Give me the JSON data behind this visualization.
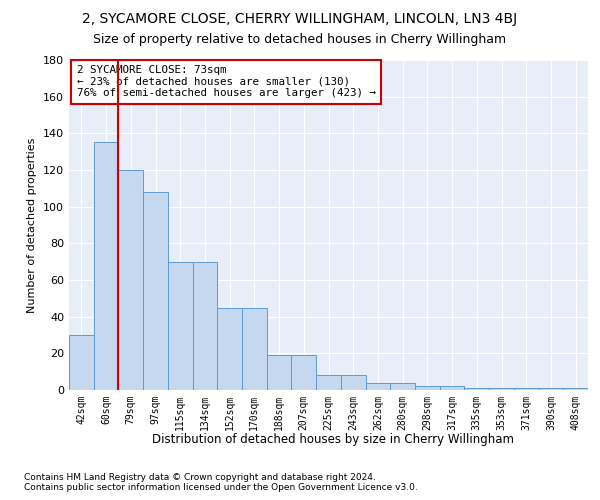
{
  "title": "2, SYCAMORE CLOSE, CHERRY WILLINGHAM, LINCOLN, LN3 4BJ",
  "subtitle": "Size of property relative to detached houses in Cherry Willingham",
  "xlabel": "Distribution of detached houses by size in Cherry Willingham",
  "ylabel": "Number of detached properties",
  "categories": [
    "42sqm",
    "60sqm",
    "79sqm",
    "97sqm",
    "115sqm",
    "134sqm",
    "152sqm",
    "170sqm",
    "188sqm",
    "207sqm",
    "225sqm",
    "243sqm",
    "262sqm",
    "280sqm",
    "298sqm",
    "317sqm",
    "335sqm",
    "353sqm",
    "371sqm",
    "390sqm",
    "408sqm"
  ],
  "values": [
    30,
    135,
    120,
    108,
    70,
    70,
    45,
    45,
    19,
    19,
    8,
    8,
    4,
    4,
    2,
    2,
    1,
    1,
    1,
    1,
    1
  ],
  "bar_color": "#c5d8f0",
  "bar_edge_color": "#5b9bd5",
  "vline_color": "#cc0000",
  "annotation_text": "2 SYCAMORE CLOSE: 73sqm\n← 23% of detached houses are smaller (130)\n76% of semi-detached houses are larger (423) →",
  "annotation_box_color": "white",
  "annotation_box_edge_color": "#cc0000",
  "ylim": [
    0,
    180
  ],
  "yticks": [
    0,
    20,
    40,
    60,
    80,
    100,
    120,
    140,
    160,
    180
  ],
  "footnote": "Contains HM Land Registry data © Crown copyright and database right 2024.\nContains public sector information licensed under the Open Government Licence v3.0.",
  "bg_color": "#e8eef8",
  "grid_color": "#ffffff",
  "title_fontsize": 10,
  "subtitle_fontsize": 9,
  "xlabel_fontsize": 8.5,
  "ylabel_fontsize": 8,
  "footnote_fontsize": 6.5
}
